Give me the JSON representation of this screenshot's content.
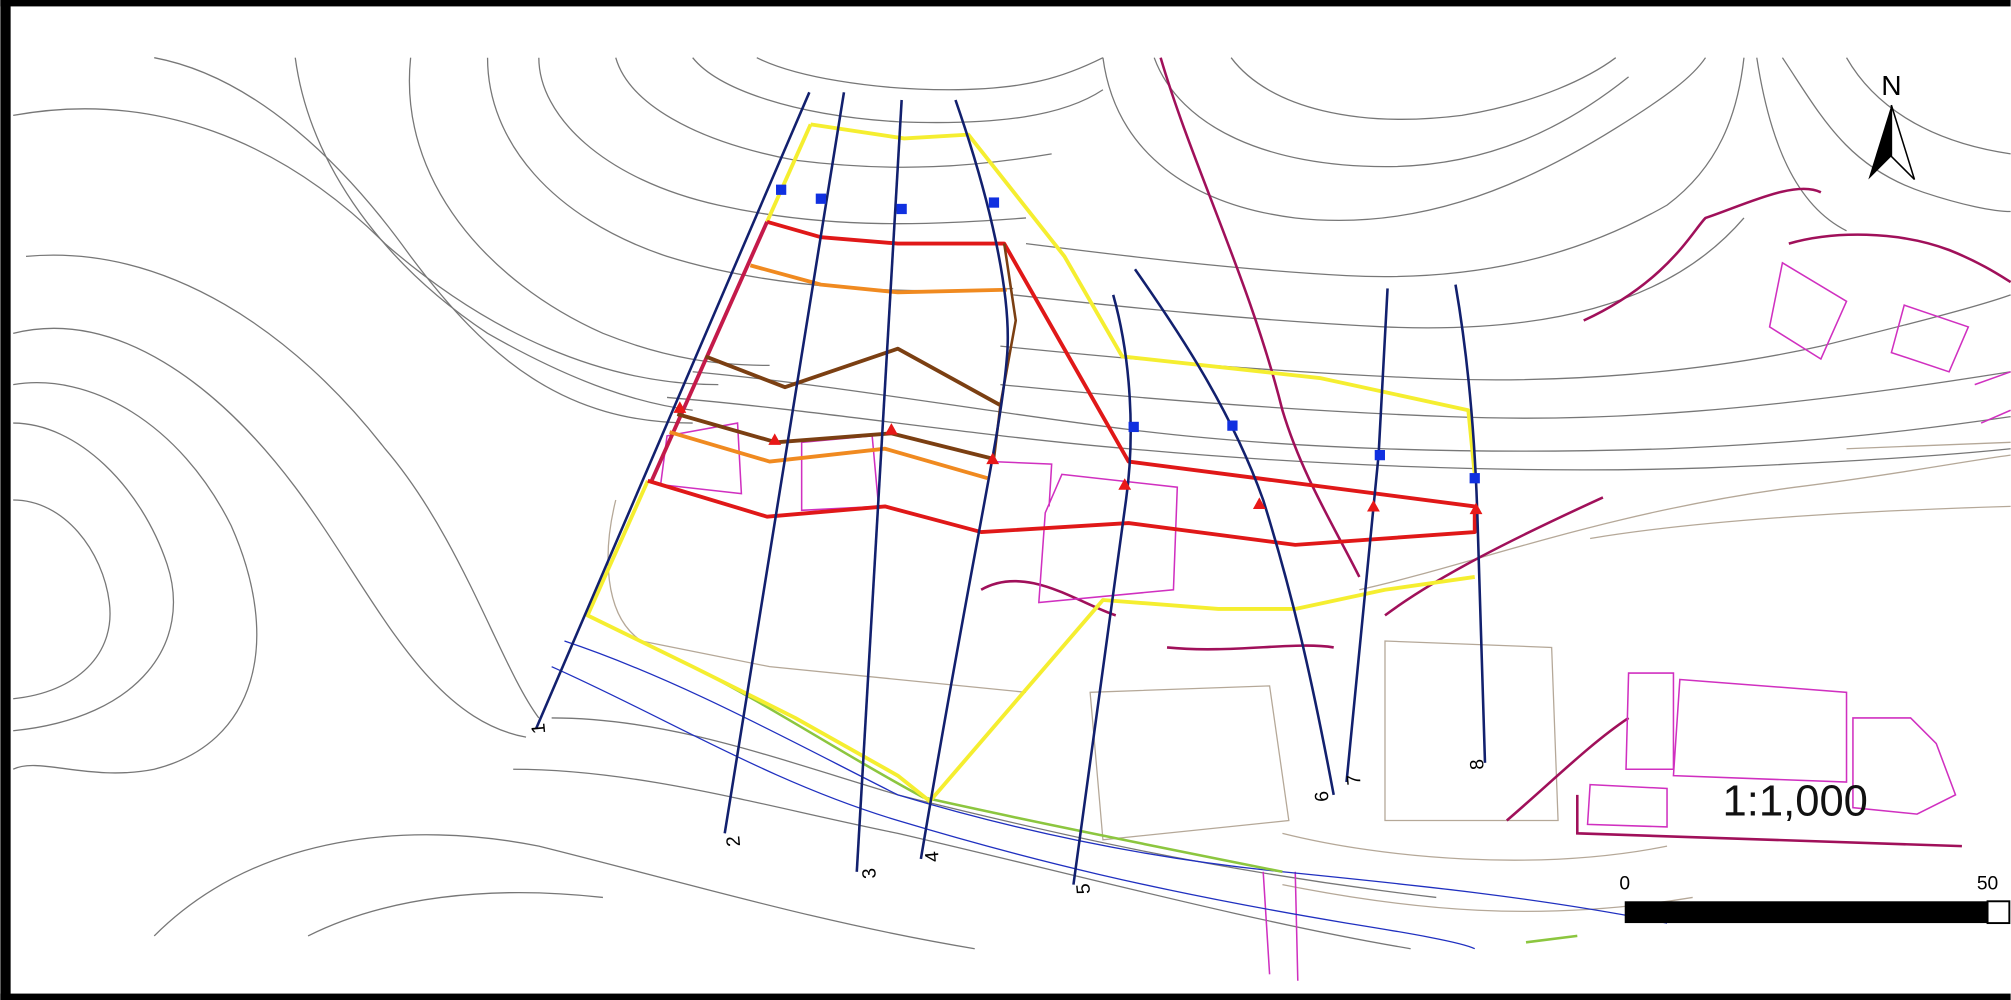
{
  "map": {
    "north_label": "N",
    "scale_label": "1:1,000",
    "scale_bar": {
      "start": "0",
      "end": "50"
    },
    "sections": [
      {
        "label": "1"
      },
      {
        "label": "2"
      },
      {
        "label": "3"
      },
      {
        "label": "4"
      },
      {
        "label": "5"
      },
      {
        "label": "6"
      },
      {
        "label": "7"
      },
      {
        "label": "8"
      }
    ]
  }
}
